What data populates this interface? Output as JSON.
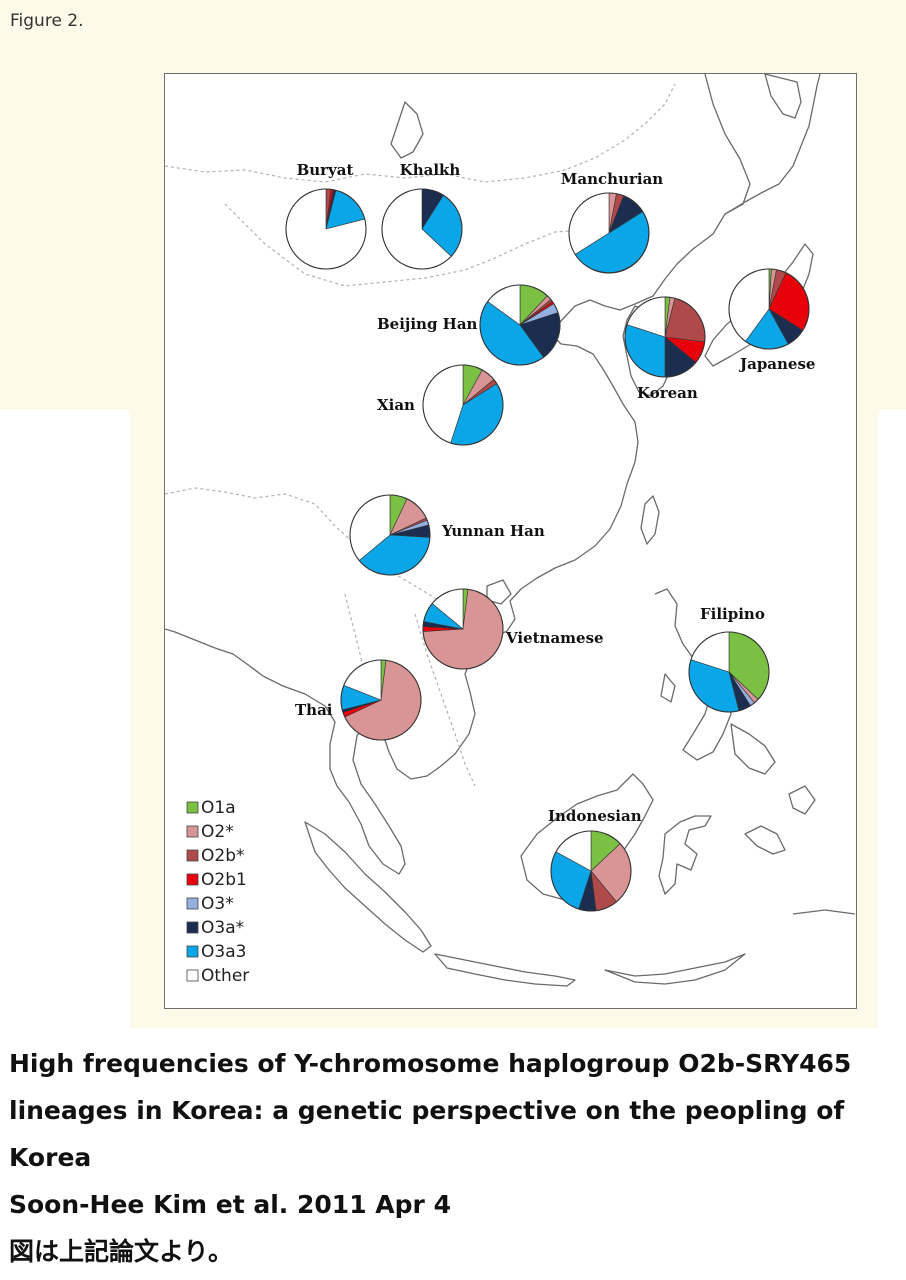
{
  "figure_label": "Figure 2.",
  "legend": [
    {
      "key": "O1a",
      "label": "O1a",
      "color": "#7ac143"
    },
    {
      "key": "O2s",
      "label": "O2*",
      "color": "#d99595"
    },
    {
      "key": "O2b",
      "label": "O2b*",
      "color": "#b04a4a"
    },
    {
      "key": "O2b1",
      "label": "O2b1",
      "color": "#e8000b"
    },
    {
      "key": "O3s",
      "label": "O3*",
      "color": "#93b0e0"
    },
    {
      "key": "O3a",
      "label": "O3a*",
      "color": "#1c2e50"
    },
    {
      "key": "O3a3",
      "label": "O3a3",
      "color": "#0aa6e8"
    },
    {
      "key": "Other",
      "label": "Other",
      "color": "#ffffff"
    }
  ],
  "populations": [
    {
      "name": "Buryat",
      "fractions": {
        "O1a": 0.0,
        "O2s": 0.0,
        "O2b": 0.02,
        "O2b1": 0.01,
        "O3s": 0.0,
        "O3a": 0.01,
        "O3a3": 0.17,
        "Other": 0.79
      }
    },
    {
      "name": "Khalkh",
      "fractions": {
        "O1a": 0.0,
        "O2s": 0.0,
        "O2b": 0.0,
        "O2b1": 0.0,
        "O3s": 0.0,
        "O3a": 0.09,
        "O3a3": 0.28,
        "Other": 0.63
      }
    },
    {
      "name": "Manchurian",
      "fractions": {
        "O1a": 0.0,
        "O2s": 0.03,
        "O2b": 0.03,
        "O2b1": 0.0,
        "O3s": 0.0,
        "O3a": 0.1,
        "O3a3": 0.5,
        "Other": 0.34
      }
    },
    {
      "name": "Beijing Han",
      "fractions": {
        "O1a": 0.12,
        "O2s": 0.02,
        "O2b": 0.01,
        "O2b1": 0.01,
        "O3s": 0.04,
        "O3a": 0.2,
        "O3a3": 0.45,
        "Other": 0.15
      }
    },
    {
      "name": "Korean",
      "fractions": {
        "O1a": 0.02,
        "O2s": 0.02,
        "O2b": 0.23,
        "O2b1": 0.09,
        "O3s": 0.0,
        "O3a": 0.14,
        "O3a3": 0.3,
        "Other": 0.2
      }
    },
    {
      "name": "Japanese",
      "fractions": {
        "O1a": 0.01,
        "O2s": 0.02,
        "O2b": 0.04,
        "O2b1": 0.27,
        "O3s": 0.0,
        "O3a": 0.08,
        "O3a3": 0.18,
        "Other": 0.4
      }
    },
    {
      "name": "Xian",
      "fractions": {
        "O1a": 0.08,
        "O2s": 0.06,
        "O2b": 0.02,
        "O2b1": 0.0,
        "O3s": 0.0,
        "O3a": 0.0,
        "O3a3": 0.39,
        "Other": 0.45
      }
    },
    {
      "name": "Yunnan  Han",
      "fractions": {
        "O1a": 0.07,
        "O2s": 0.11,
        "O2b": 0.01,
        "O2b1": 0.0,
        "O3s": 0.02,
        "O3a": 0.05,
        "O3a3": 0.38,
        "Other": 0.36
      }
    },
    {
      "name": "Vietnamese",
      "fractions": {
        "O1a": 0.02,
        "O2s": 0.72,
        "O2b": 0.0,
        "O2b1": 0.02,
        "O3s": 0.0,
        "O3a": 0.02,
        "O3a3": 0.08,
        "Other": 0.14
      }
    },
    {
      "name": "Thai",
      "fractions": {
        "O1a": 0.02,
        "O2s": 0.66,
        "O2b": 0.0,
        "O2b1": 0.02,
        "O3s": 0.0,
        "O3a": 0.01,
        "O3a3": 0.1,
        "Other": 0.19
      }
    },
    {
      "name": "Filipino",
      "fractions": {
        "O1a": 0.37,
        "O2s": 0.02,
        "O2b": 0.0,
        "O2b1": 0.0,
        "O3s": 0.02,
        "O3a": 0.05,
        "O3a3": 0.34,
        "Other": 0.2
      }
    },
    {
      "name": "Indonesian",
      "fractions": {
        "O1a": 0.13,
        "O2s": 0.26,
        "O2b": 0.09,
        "O2b1": 0.0,
        "O3s": 0.0,
        "O3a": 0.07,
        "O3a3": 0.28,
        "Other": 0.17
      }
    }
  ],
  "caption": {
    "line1": "High frequencies of Y-chromosome haplogroup O2b-SRY465",
    "line2": "lineages in Korea: a genetic perspective on the peopling of",
    "line3": "Korea",
    "line4": "Soon-Hee Kim et al. 2011 Apr 4",
    "line5": "図は上記論文より。"
  }
}
